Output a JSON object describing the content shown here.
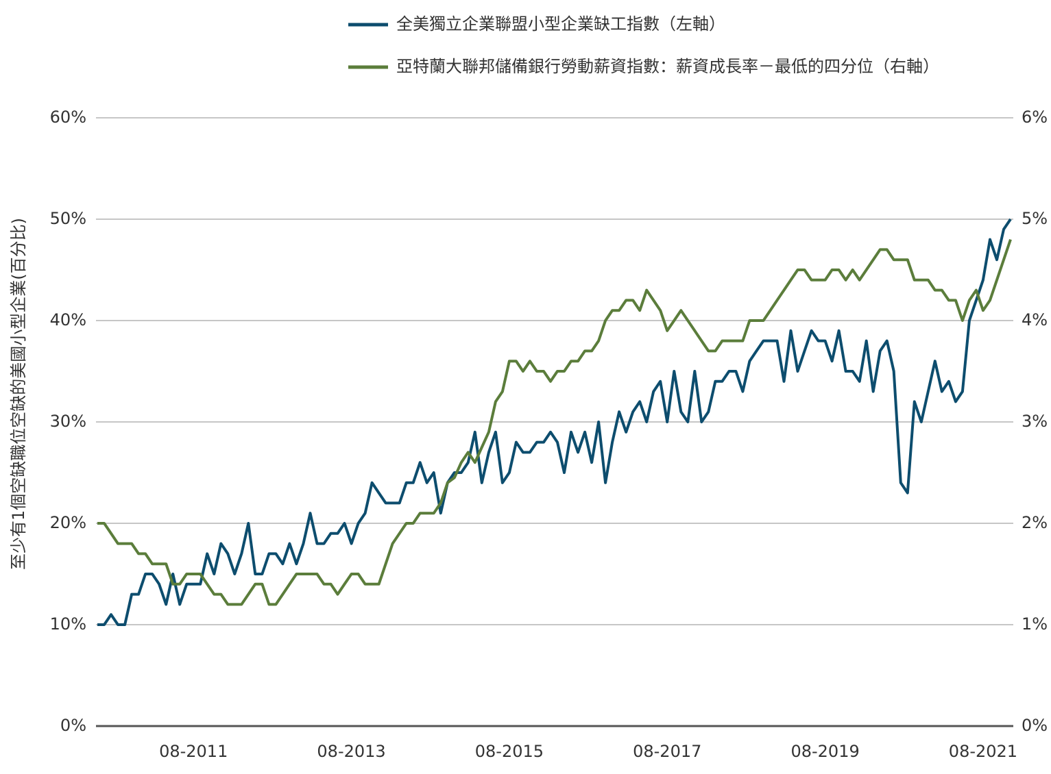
{
  "chart_data": {
    "type": "line",
    "y_label": "至少有1個空缺職位空缺的美國小型企業(百分比)",
    "categories": [
      null,
      null,
      null,
      null,
      null,
      null,
      null,
      null,
      null,
      null,
      null,
      null,
      null,
      null,
      "08-2011",
      null,
      null,
      null,
      null,
      null,
      null,
      null,
      null,
      null,
      null,
      null,
      null,
      null,
      null,
      null,
      null,
      null,
      null,
      null,
      null,
      null,
      null,
      "08-2013",
      null,
      null,
      null,
      null,
      null,
      null,
      null,
      null,
      null,
      null,
      null,
      null,
      null,
      null,
      null,
      null,
      null,
      null,
      null,
      null,
      null,
      null,
      "08-2015",
      null,
      null,
      null,
      null,
      null,
      null,
      null,
      null,
      null,
      null,
      null,
      null,
      null,
      null,
      null,
      null,
      null,
      null,
      null,
      null,
      null,
      null,
      "08-2017",
      null,
      null,
      null,
      null,
      null,
      null,
      null,
      null,
      null,
      null,
      null,
      null,
      null,
      null,
      null,
      null,
      null,
      null,
      null,
      null,
      null,
      null,
      "08-2019",
      null,
      null,
      null,
      null,
      null,
      null,
      null,
      null,
      null,
      null,
      null,
      null,
      null,
      null,
      null,
      null,
      null,
      null,
      null,
      null,
      null,
      null,
      "08-2021",
      null,
      null,
      null,
      null
    ],
    "series": [
      {
        "name": "全美獨立企業聯盟小型企業缺工指數（左軸）",
        "color": "#0d4d6e",
        "axis": "y",
        "values": [
          10,
          10,
          11,
          10,
          10,
          13,
          13,
          15,
          15,
          14,
          12,
          15,
          12,
          14,
          14,
          14,
          17,
          15,
          18,
          17,
          15,
          17,
          20,
          15,
          15,
          17,
          17,
          16,
          18,
          16,
          18,
          21,
          18,
          18,
          19,
          19,
          20,
          18,
          20,
          21,
          24,
          23,
          22,
          22,
          22,
          24,
          24,
          26,
          24,
          25,
          21,
          24,
          25,
          25,
          26,
          29,
          24,
          27,
          29,
          24,
          25,
          28,
          27,
          27,
          28,
          28,
          29,
          28,
          25,
          29,
          27,
          29,
          26,
          30,
          24,
          28,
          31,
          29,
          31,
          32,
          30,
          33,
          34,
          30,
          35,
          31,
          30,
          35,
          30,
          31,
          34,
          34,
          35,
          35,
          33,
          36,
          37,
          38,
          38,
          38,
          34,
          39,
          35,
          37,
          39,
          38,
          38,
          36,
          39,
          35,
          35,
          34,
          38,
          33,
          37,
          38,
          35,
          24,
          23,
          32,
          30,
          33,
          36,
          33,
          34,
          32,
          33,
          40,
          42,
          44,
          48,
          46,
          49,
          50
        ]
      },
      {
        "name": "亞特蘭大聯邦儲備銀行勞動薪資指數：薪資成長率－最低的四分位（右軸）",
        "color": "#5b7d3b",
        "axis": "y2",
        "values": [
          2.0,
          2.0,
          1.9,
          1.8,
          1.8,
          1.8,
          1.7,
          1.7,
          1.6,
          1.6,
          1.6,
          1.4,
          1.4,
          1.5,
          1.5,
          1.5,
          1.4,
          1.3,
          1.3,
          1.2,
          1.2,
          1.2,
          1.3,
          1.4,
          1.4,
          1.2,
          1.2,
          1.3,
          1.4,
          1.5,
          1.5,
          1.5,
          1.5,
          1.4,
          1.4,
          1.3,
          1.4,
          1.5,
          1.5,
          1.4,
          1.4,
          1.4,
          1.6,
          1.8,
          1.9,
          2.0,
          2.0,
          2.1,
          2.1,
          2.1,
          2.2,
          2.4,
          2.45,
          2.6,
          2.7,
          2.6,
          2.75,
          2.9,
          3.2,
          3.3,
          3.6,
          3.6,
          3.5,
          3.6,
          3.5,
          3.5,
          3.4,
          3.5,
          3.5,
          3.6,
          3.6,
          3.7,
          3.7,
          3.8,
          4.0,
          4.1,
          4.1,
          4.2,
          4.2,
          4.1,
          4.3,
          4.2,
          4.1,
          3.9,
          4.0,
          4.1,
          4.0,
          3.9,
          3.8,
          3.7,
          3.7,
          3.8,
          3.8,
          3.8,
          3.8,
          4.0,
          4.0,
          4.0,
          4.1,
          4.2,
          4.3,
          4.4,
          4.5,
          4.5,
          4.4,
          4.4,
          4.4,
          4.5,
          4.5,
          4.4,
          4.5,
          4.4,
          4.5,
          4.6,
          4.7,
          4.7,
          4.6,
          4.6,
          4.6,
          4.4,
          4.4,
          4.4,
          4.3,
          4.3,
          4.2,
          4.2,
          4.0,
          4.2,
          4.3,
          4.1,
          4.2,
          4.4,
          4.6,
          4.8
        ]
      }
    ],
    "ylim": [
      0,
      60
    ],
    "yticks": [
      {
        "value": 0,
        "label": "0%"
      },
      {
        "value": 10,
        "label": "10%"
      },
      {
        "value": 20,
        "label": "20%"
      },
      {
        "value": 30,
        "label": "30%"
      },
      {
        "value": 40,
        "label": "40%"
      },
      {
        "value": 50,
        "label": "50%"
      },
      {
        "value": 60,
        "label": "60%"
      }
    ],
    "y2lim": [
      0,
      6
    ],
    "y2ticks": [
      {
        "value": 0,
        "label": "0%"
      },
      {
        "value": 1,
        "label": "1%"
      },
      {
        "value": 2,
        "label": "2%"
      },
      {
        "value": 3,
        "label": "3%"
      },
      {
        "value": 4,
        "label": "4%"
      },
      {
        "value": 5,
        "label": "5%"
      },
      {
        "value": 6,
        "label": "6%"
      }
    ],
    "grid": true,
    "legend": "top"
  }
}
